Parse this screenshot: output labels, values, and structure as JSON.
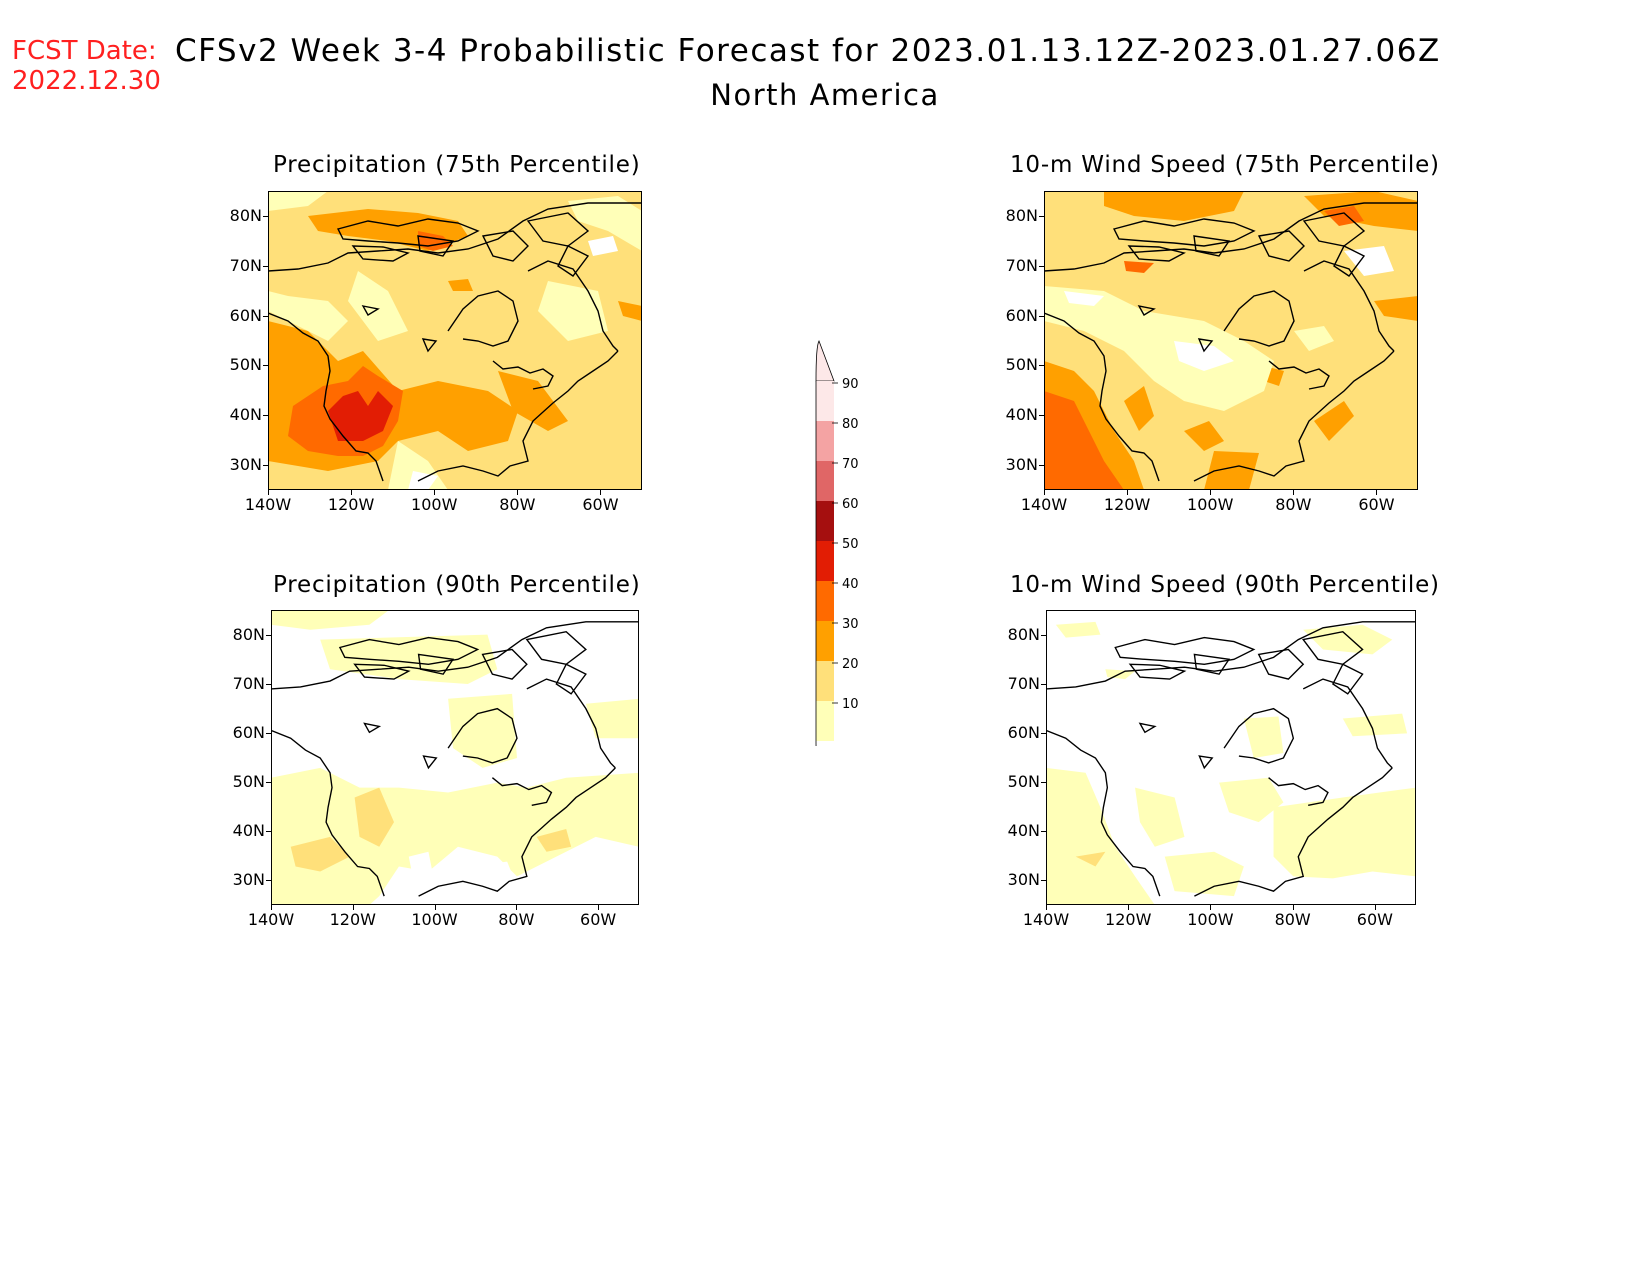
{
  "header": {
    "fcst_label": "FCST Date:",
    "fcst_date": "2022.12.30",
    "title": "CFSv2 Week 3-4 Probabilistic Forecast for 2023.01.13.12Z-2023.01.27.06Z",
    "region": "North America"
  },
  "axes": {
    "lat_labels": [
      "80N",
      "70N",
      "60N",
      "50N",
      "40N",
      "30N"
    ],
    "lon_labels": [
      "140W",
      "120W",
      "100W",
      "80W",
      "60W"
    ]
  },
  "panels": [
    {
      "id": "precip-75",
      "title": "Precipitation (75th Percentile)"
    },
    {
      "id": "wind-75",
      "title": "10-m Wind Speed (75th Percentile)"
    },
    {
      "id": "precip-90",
      "title": "Precipitation (90th Percentile)"
    },
    {
      "id": "wind-90",
      "title": "10-m Wind Speed (90th Percentile)"
    }
  ],
  "colorbar": {
    "labels": [
      "90",
      "80",
      "70",
      "60",
      "50",
      "40",
      "30",
      "20",
      "10"
    ],
    "colors": [
      "#fde8e8",
      "#f4a3a3",
      "#e06666",
      "#a50f0f",
      "#e21d04",
      "#ff6a00",
      "#ffa000",
      "#ffe07a",
      "#ffffb8"
    ]
  }
}
